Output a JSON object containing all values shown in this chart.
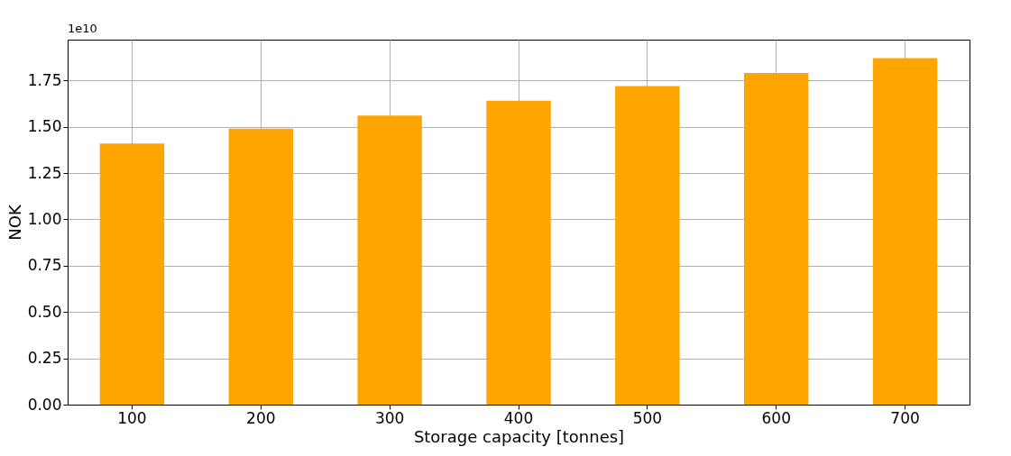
{
  "chart_data": {
    "type": "bar",
    "xlabel": "Storage capacity [tonnes]",
    "ylabel": "NOK",
    "annotations": [
      "1e10"
    ],
    "categories": [
      "100",
      "200",
      "300",
      "400",
      "500",
      "600",
      "700"
    ],
    "values": [
      1.41,
      1.49,
      1.56,
      1.64,
      1.72,
      1.79,
      1.87
    ],
    "color": "#ffa500",
    "ylim": [
      0,
      1.97
    ],
    "yticks": [
      {
        "value": 0,
        "label": "0.00"
      },
      {
        "value": 0.25,
        "label": "0.25"
      },
      {
        "value": 0.5,
        "label": "0.50"
      },
      {
        "value": 0.75,
        "label": "0.75"
      },
      {
        "value": 1,
        "label": "1.00"
      },
      {
        "value": 1.25,
        "label": "1.25"
      },
      {
        "value": 1.5,
        "label": "1.50"
      },
      {
        "value": 1.75,
        "label": "1.75"
      }
    ],
    "grid": true
  }
}
